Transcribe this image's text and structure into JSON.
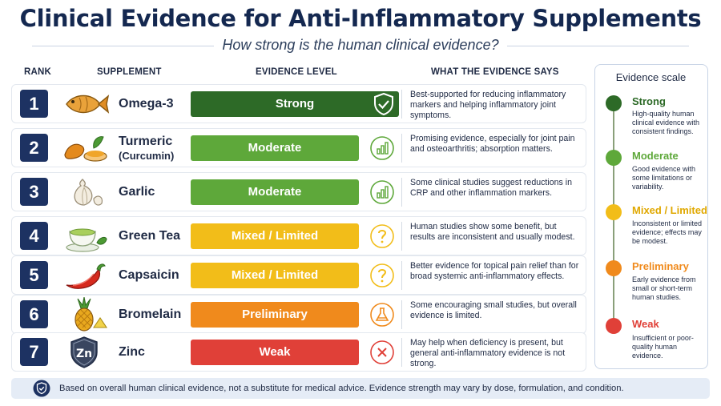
{
  "title": "Clinical Evidence for Anti-Inflammatory Supplements",
  "subtitle": "How strong is the human clinical evidence?",
  "columns": {
    "rank": "RANK",
    "supplement": "SUPPLEMENT",
    "level": "EVIDENCE LEVEL",
    "says": "WHAT THE EVIDENCE SAYS"
  },
  "rows": [
    {
      "rank": "1",
      "name": "Omega-3",
      "sub": "",
      "icon": "fish-icon",
      "level": "Strong",
      "level_icon": "shield-check-icon",
      "color": "#2d6a27",
      "says": "Best-supported for reducing inflammatory markers and helping inflammatory joint symptoms."
    },
    {
      "rank": "2",
      "name": "Turmeric",
      "sub": "(Curcumin)",
      "icon": "turmeric-icon",
      "level": "Moderate",
      "level_icon": "bar-chart-icon",
      "color": "#5ea83a",
      "says": "Promising evidence, especially for joint pain and osteoarthritis; absorption matters."
    },
    {
      "rank": "3",
      "name": "Garlic",
      "sub": "",
      "icon": "garlic-icon",
      "level": "Moderate",
      "level_icon": "bar-chart-icon",
      "color": "#5ea83a",
      "says": "Some clinical studies suggest reductions in CRP and other inflammation markers."
    },
    {
      "rank": "4",
      "name": "Green Tea",
      "sub": "",
      "icon": "tea-cup-icon",
      "level": "Mixed / Limited",
      "level_icon": "question-icon",
      "color": "#f2bd19",
      "says": "Human studies show some benefit, but results are inconsistent and usually modest."
    },
    {
      "rank": "5",
      "name": "Capsaicin",
      "sub": "",
      "icon": "chili-pepper-icon",
      "level": "Mixed / Limited",
      "level_icon": "question-icon",
      "color": "#f2bd19",
      "says": "Better evidence for topical pain relief than for broad systemic anti-inflammatory effects."
    },
    {
      "rank": "6",
      "name": "Bromelain",
      "sub": "",
      "icon": "pineapple-icon",
      "level": "Preliminary",
      "level_icon": "flask-icon",
      "color": "#f08a1c",
      "says": "Some encouraging small studies, but overall evidence is limited."
    },
    {
      "rank": "7",
      "name": "Zinc",
      "sub": "",
      "icon": "zinc-shield-icon",
      "icon_text": "Zn",
      "level": "Weak",
      "level_icon": "x-circle-icon",
      "color": "#e04038",
      "says": "May help when deficiency is present, but general anti-inflammatory evidence is not strong."
    }
  ],
  "scale": {
    "title": "Evidence scale",
    "items": [
      {
        "label": "Strong",
        "color": "#2d6a27",
        "desc": "High-quality human clinical evidence with consistent findings."
      },
      {
        "label": "Moderate",
        "color": "#5ea83a",
        "desc": "Good evidence with some limitations or variability."
      },
      {
        "label": "Mixed / Limited",
        "color": "#f2bd19",
        "desc": "Inconsistent or limited evidence; effects may be modest."
      },
      {
        "label": "Preliminary",
        "color": "#f08a1c",
        "desc": "Early evidence from small or short-term human studies."
      },
      {
        "label": "Weak",
        "color": "#e04038",
        "desc": "Insufficient or poor-quality human evidence."
      }
    ]
  },
  "footer": {
    "icon": "shield-check-icon",
    "text": "Based on overall human clinical evidence, not a substitute for medical advice. Evidence strength may vary by dose, formulation, and condition."
  }
}
